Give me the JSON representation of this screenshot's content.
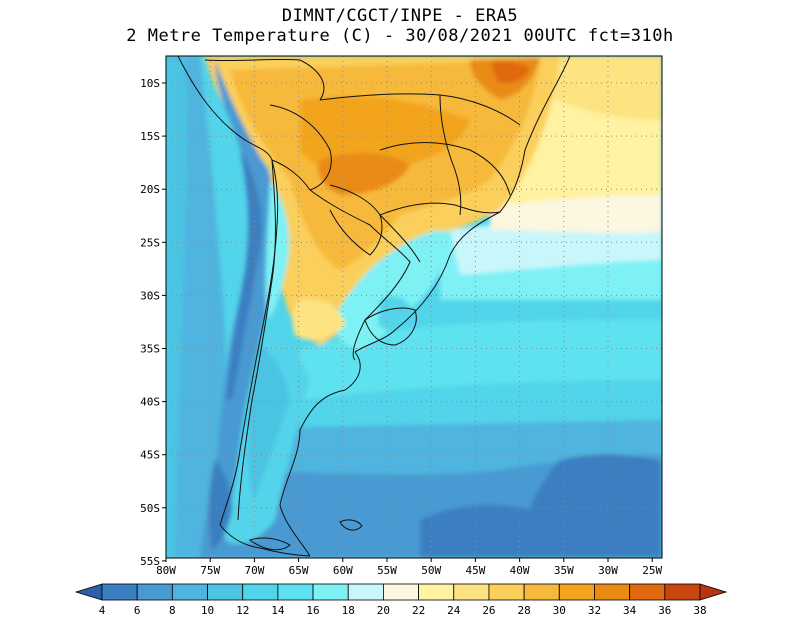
{
  "title": {
    "line1": "DIMNT/CGCT/INPE -  ERA5",
    "line2": "2 Metre Temperature (C) -  30/08/2021 00UTC fct=310h"
  },
  "map": {
    "lat_labels": [
      "10S",
      "15S",
      "20S",
      "25S",
      "30S",
      "35S",
      "40S",
      "45S",
      "50S",
      "55S"
    ],
    "lon_labels": [
      "80W",
      "75W",
      "70W",
      "65W",
      "60W",
      "55W",
      "50W",
      "45W",
      "40W",
      "35W",
      "30W",
      "25W"
    ]
  },
  "colorbar": {
    "ticks": [
      "4",
      "6",
      "8",
      "10",
      "12",
      "14",
      "16",
      "18",
      "20",
      "22",
      "24",
      "26",
      "28",
      "30",
      "32",
      "34",
      "36",
      "38"
    ],
    "colors": [
      "#2b5fa8",
      "#3a7fc1",
      "#4a9ad2",
      "#4fb4df",
      "#4cc4e4",
      "#52d4ea",
      "#5ee2ef",
      "#7ef1f5",
      "#c9f6fb",
      "#fbf7e0",
      "#fff2a0",
      "#fde381",
      "#fbcf5c",
      "#f6b93b",
      "#f2a41f",
      "#ea8b14",
      "#e0680e",
      "#c84610",
      "#b83310"
    ]
  }
}
